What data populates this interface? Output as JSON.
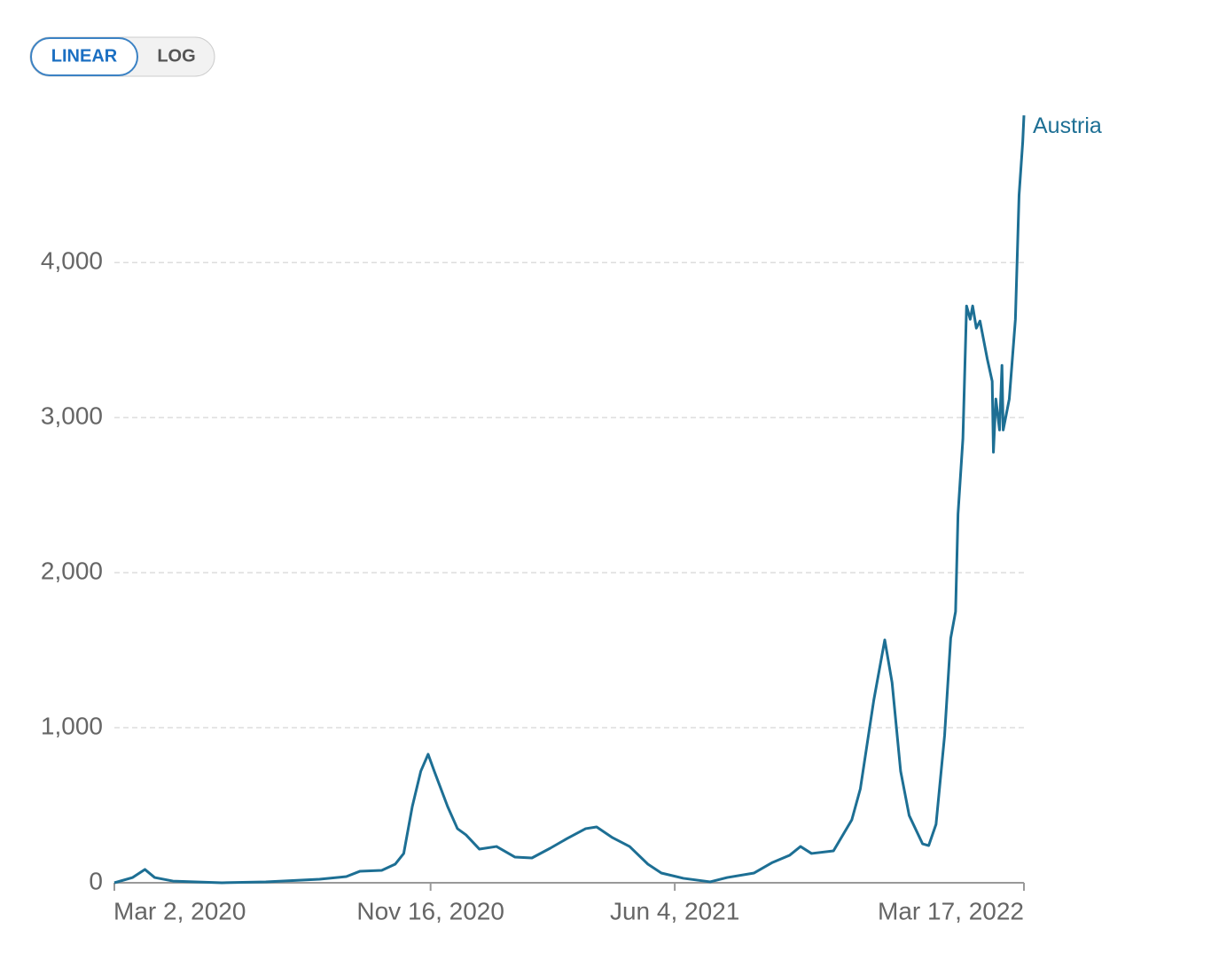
{
  "chart_data": {
    "type": "line",
    "scale_options": [
      "LINEAR",
      "LOG"
    ],
    "log_scale": false,
    "x": [
      "2020-03-02",
      "2020-03-17",
      "2020-03-27",
      "2020-04-04",
      "2020-04-19",
      "2020-05-29",
      "2020-07-04",
      "2020-08-17",
      "2020-09-08",
      "2020-09-19",
      "2020-10-07",
      "2020-10-18",
      "2020-10-25",
      "2020-11-01",
      "2020-11-08",
      "2020-11-14",
      "2020-11-19",
      "2020-11-30",
      "2020-12-08",
      "2020-12-15",
      "2020-12-26",
      "2021-01-09",
      "2021-01-24",
      "2021-02-07",
      "2021-02-22",
      "2021-03-08",
      "2021-03-23",
      "2021-04-01",
      "2021-04-14",
      "2021-04-28",
      "2021-05-13",
      "2021-05-24",
      "2021-06-11",
      "2021-07-03",
      "2021-07-17",
      "2021-08-08",
      "2021-08-23",
      "2021-09-06",
      "2021-09-15",
      "2021-09-24",
      "2021-10-12",
      "2021-10-27",
      "2021-11-03",
      "2021-11-14",
      "2021-11-23",
      "2021-11-29",
      "2021-12-06",
      "2021-12-13",
      "2021-12-24",
      "2021-12-29",
      "2022-01-04",
      "2022-01-11",
      "2022-01-16",
      "2022-01-20",
      "2022-01-22",
      "2022-01-26",
      "2022-01-29",
      "2022-02-01",
      "2022-02-03",
      "2022-02-06",
      "2022-02-09",
      "2022-02-15",
      "2022-02-19",
      "2022-02-20",
      "2022-02-22",
      "2022-02-25",
      "2022-02-27",
      "2022-02-28",
      "2022-03-05",
      "2022-03-10",
      "2022-03-13",
      "2022-03-16",
      "2022-03-17"
    ],
    "series": [
      {
        "name": "Austria",
        "color": "#1d6f94",
        "values": [
          0,
          34,
          86,
          34,
          11,
          0,
          6,
          23,
          40,
          74,
          80,
          120,
          189,
          491,
          720,
          829,
          720,
          491,
          349,
          309,
          217,
          234,
          166,
          160,
          223,
          286,
          349,
          360,
          291,
          234,
          120,
          63,
          29,
          6,
          34,
          63,
          131,
          177,
          234,
          189,
          206,
          406,
          606,
          1177,
          1566,
          1291,
          720,
          434,
          251,
          240,
          377,
          949,
          1577,
          1749,
          2377,
          2863,
          3720,
          3634,
          3720,
          3577,
          3623,
          3377,
          3234,
          2777,
          3120,
          2920,
          3337,
          2920,
          3120,
          3634,
          4434,
          4777,
          4949
        ]
      }
    ],
    "xlim": [
      "2020-03-02",
      "2022-03-17"
    ],
    "xticks": [
      {
        "value": "2020-03-02",
        "label": "Mar 2, 2020"
      },
      {
        "value": "2020-11-16",
        "label": "Nov 16, 2020"
      },
      {
        "value": "2021-06-04",
        "label": "Jun 4, 2021"
      },
      {
        "value": "2022-03-17",
        "label": "Mar 17, 2022"
      }
    ],
    "ylim": [
      0,
      4950
    ],
    "yticks": [
      0,
      {
        "value": 1000,
        "label": "1,000"
      },
      {
        "value": 2000,
        "label": "2,000"
      },
      {
        "value": 3000,
        "label": "3,000"
      },
      {
        "value": 4000,
        "label": "4,000"
      }
    ],
    "grid": true
  }
}
